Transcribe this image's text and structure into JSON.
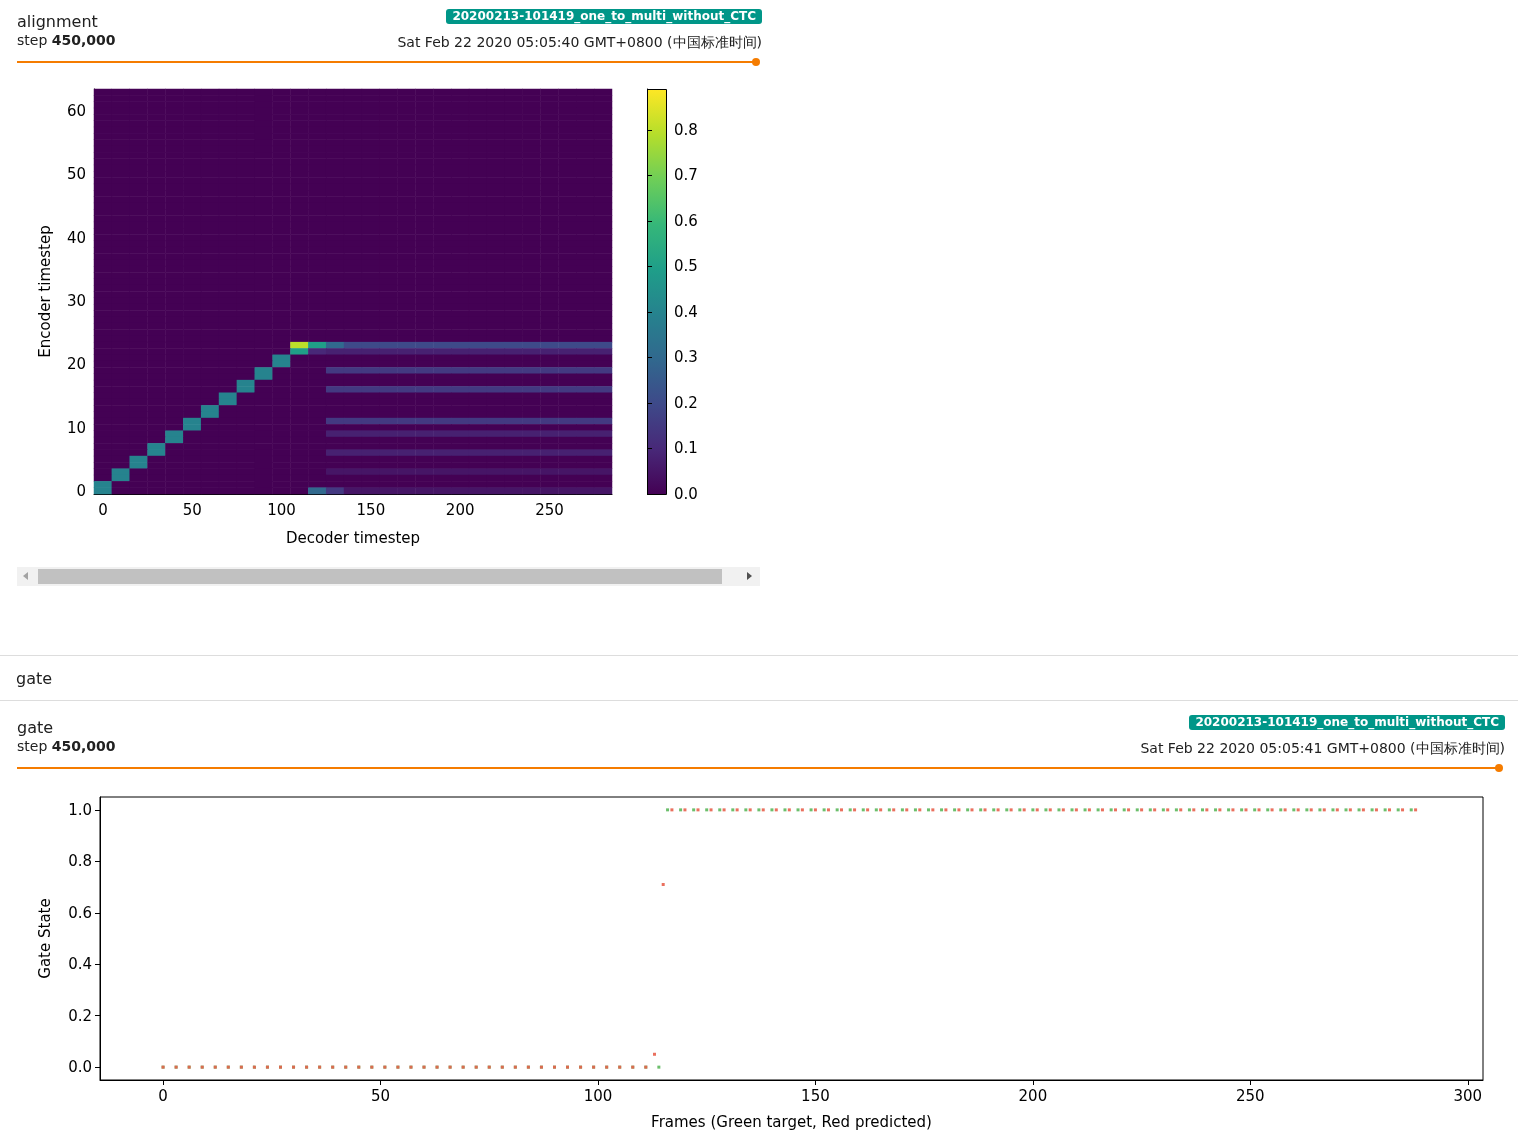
{
  "chart_data": [
    {
      "type": "heatmap",
      "title": "alignment",
      "subtitle": "step 450,000",
      "annotations": [
        "20200213-101419_one_to_multi_without_CTC",
        "Sat Feb 22 2020 05:05:40 GMT+0800 (中国标准时间)"
      ],
      "xlabel": "Decoder timestep",
      "ylabel": "Encoder timestep",
      "categories": [
        "0",
        null,
        null,
        null,
        null,
        "50",
        null,
        null,
        null,
        null,
        "100",
        null,
        null,
        null,
        null,
        "150",
        null,
        null,
        null,
        null,
        "200",
        null,
        null,
        null,
        null,
        "250",
        null,
        null,
        null
      ],
      "y_categories": [
        null,
        null,
        null,
        "60",
        null,
        null,
        null,
        null,
        null,
        null,
        null,
        null,
        null,
        "50",
        null,
        null,
        null,
        null,
        null,
        null,
        null,
        null,
        null,
        "40",
        null,
        null,
        null,
        null,
        null,
        null,
        null,
        null,
        null,
        "30",
        null,
        null,
        null,
        null,
        null,
        null,
        null,
        null,
        null,
        "20",
        null,
        null,
        null,
        null,
        null,
        null,
        null,
        null,
        null,
        "10",
        null,
        null,
        null,
        null,
        null,
        null,
        null,
        null,
        null,
        "0"
      ],
      "cells": [
        [
          0,
          0,
          0,
          0,
          0,
          0,
          0,
          0,
          0,
          0,
          0,
          0,
          0,
          0,
          0,
          0,
          0,
          0,
          0,
          0,
          0,
          0,
          0,
          0,
          0,
          0,
          0,
          0,
          0
        ],
        [
          0,
          0,
          0,
          0,
          0,
          0,
          0,
          0,
          0,
          0,
          0,
          0,
          0,
          0,
          0,
          0,
          0,
          0,
          0,
          0,
          0,
          0,
          0,
          0,
          0,
          0,
          0,
          0,
          0
        ],
        [
          0,
          0,
          0,
          0,
          0,
          0,
          0,
          0,
          0,
          0,
          0,
          0,
          0,
          0,
          0,
          0,
          0,
          0,
          0,
          0,
          0,
          0,
          0,
          0,
          0,
          0,
          0,
          0,
          0
        ],
        [
          0,
          0,
          0,
          0,
          0,
          0,
          0,
          0,
          0,
          0,
          0,
          0,
          0,
          0,
          0,
          0,
          0,
          0,
          0,
          0,
          0,
          0,
          0,
          0,
          0,
          0,
          0,
          0,
          0
        ],
        [
          0,
          0,
          0,
          0,
          0,
          0,
          0,
          0,
          0,
          0,
          0,
          0,
          0,
          0,
          0,
          0,
          0,
          0,
          0,
          0,
          0,
          0,
          0,
          0,
          0,
          0,
          0,
          0,
          0
        ],
        [
          0,
          0,
          0,
          0,
          0,
          0,
          0,
          0,
          0,
          0,
          0,
          0,
          0,
          0,
          0,
          0,
          0,
          0,
          0,
          0,
          0,
          0,
          0,
          0,
          0,
          0,
          0,
          0,
          0
        ],
        [
          0,
          0,
          0,
          0,
          0,
          0,
          0,
          0,
          0,
          0,
          0,
          0,
          0,
          0,
          0,
          0,
          0,
          0,
          0,
          0,
          0,
          0,
          0,
          0,
          0,
          0,
          0,
          0,
          0
        ],
        [
          0,
          0,
          0,
          0,
          0,
          0,
          0,
          0,
          0,
          0,
          0,
          0,
          0,
          0,
          0,
          0,
          0,
          0,
          0,
          0,
          0,
          0,
          0,
          0,
          0,
          0,
          0,
          0,
          0
        ],
        [
          0,
          0,
          0,
          0,
          0,
          0,
          0,
          0,
          0,
          0,
          0,
          0,
          0,
          0,
          0,
          0,
          0,
          0,
          0,
          0,
          0,
          0,
          0,
          0,
          0,
          0,
          0,
          0,
          0
        ],
        [
          0,
          0,
          0,
          0,
          0,
          0,
          0,
          0,
          0,
          0,
          0,
          0,
          0,
          0,
          0,
          0,
          0,
          0,
          0,
          0,
          0,
          0,
          0,
          0,
          0,
          0,
          0,
          0,
          0
        ],
        [
          0,
          0,
          0,
          0,
          0,
          0,
          0,
          0,
          0,
          0,
          0,
          0,
          0,
          0,
          0,
          0,
          0,
          0,
          0,
          0,
          0,
          0,
          0,
          0,
          0,
          0,
          0,
          0,
          0
        ],
        [
          0,
          0,
          0,
          0,
          0,
          0,
          0,
          0,
          0,
          0,
          0,
          0,
          0,
          0,
          0,
          0,
          0,
          0,
          0,
          0,
          0,
          0,
          0,
          0,
          0,
          0,
          0,
          0,
          0
        ],
        [
          0,
          0,
          0,
          0,
          0,
          0,
          0,
          0,
          0,
          0,
          0,
          0,
          0,
          0,
          0,
          0,
          0,
          0,
          0,
          0,
          0,
          0,
          0,
          0,
          0,
          0,
          0,
          0,
          0
        ],
        [
          0,
          0,
          0,
          0,
          0,
          0,
          0,
          0,
          0,
          0,
          0,
          0,
          0,
          0,
          0,
          0,
          0,
          0,
          0,
          0,
          0,
          0,
          0,
          0,
          0,
          0,
          0,
          0,
          0
        ],
        [
          0,
          0,
          0,
          0,
          0,
          0,
          0,
          0,
          0,
          0,
          0,
          0,
          0,
          0,
          0,
          0,
          0,
          0,
          0,
          0,
          0,
          0,
          0,
          0,
          0,
          0,
          0,
          0,
          0
        ],
        [
          0,
          0,
          0,
          0,
          0,
          0,
          0,
          0,
          0,
          0,
          0,
          0,
          0,
          0,
          0,
          0,
          0,
          0,
          0,
          0,
          0,
          0,
          0,
          0,
          0,
          0,
          0,
          0,
          0
        ],
        [
          0,
          0,
          0,
          0,
          0,
          0,
          0,
          0,
          0,
          0,
          0,
          0,
          0,
          0,
          0,
          0,
          0,
          0,
          0,
          0,
          0,
          0,
          0,
          0,
          0,
          0,
          0,
          0,
          0
        ],
        [
          0,
          0,
          0,
          0,
          0,
          0,
          0,
          0,
          0,
          0,
          0,
          0,
          0,
          0,
          0,
          0,
          0,
          0,
          0,
          0,
          0,
          0,
          0,
          0,
          0,
          0,
          0,
          0,
          0
        ],
        [
          0,
          0,
          0,
          0,
          0,
          0,
          0,
          0,
          0,
          0,
          0,
          0,
          0,
          0,
          0,
          0,
          0,
          0,
          0,
          0,
          0,
          0,
          0,
          0,
          0,
          0,
          0,
          0,
          0
        ],
        [
          0,
          0,
          0,
          0,
          0,
          0,
          0,
          0,
          0,
          0,
          0,
          0,
          0,
          0,
          0,
          0,
          0,
          0,
          0,
          0,
          0,
          0,
          0,
          0,
          0,
          0,
          0,
          0,
          0
        ],
        [
          0,
          0,
          0,
          0,
          0,
          0,
          0,
          0,
          0,
          0,
          0,
          0,
          0,
          0,
          0,
          0,
          0,
          0,
          0,
          0,
          0,
          0,
          0,
          0,
          0,
          0,
          0,
          0,
          0
        ],
        [
          0,
          0,
          0,
          0,
          0,
          0,
          0,
          0,
          0,
          0,
          0,
          0,
          0,
          0,
          0,
          0,
          0,
          0,
          0,
          0,
          0,
          0,
          0,
          0,
          0,
          0,
          0,
          0,
          0
        ],
        [
          0,
          0,
          0,
          0,
          0,
          0,
          0,
          0,
          0,
          0,
          0,
          0,
          0,
          0,
          0,
          0,
          0,
          0,
          0,
          0,
          0,
          0,
          0,
          0,
          0,
          0,
          0,
          0,
          0
        ],
        [
          0,
          0,
          0,
          0,
          0,
          0,
          0,
          0,
          0,
          0,
          0,
          0,
          0,
          0,
          0,
          0,
          0,
          0,
          0,
          0,
          0,
          0,
          0,
          0,
          0,
          0,
          0,
          0,
          0
        ],
        [
          0,
          0,
          0,
          0,
          0,
          0,
          0,
          0,
          0,
          0,
          0,
          0,
          0,
          0,
          0,
          0,
          0,
          0,
          0,
          0,
          0,
          0,
          0,
          0,
          0,
          0,
          0,
          0,
          0
        ],
        [
          0,
          0,
          0,
          0,
          0,
          0,
          0,
          0,
          0,
          0,
          0,
          0,
          0,
          0,
          0,
          0,
          0,
          0,
          0,
          0,
          0,
          0,
          0,
          0,
          0,
          0,
          0,
          0,
          0
        ],
        [
          0,
          0,
          0,
          0,
          0,
          0,
          0,
          0,
          0,
          0,
          0,
          0,
          0,
          0,
          0,
          0,
          0,
          0,
          0,
          0,
          0,
          0,
          0,
          0,
          0,
          0,
          0,
          0,
          0
        ],
        [
          0,
          0,
          0,
          0,
          0,
          0,
          0,
          0,
          0,
          0,
          0,
          0,
          0,
          0,
          0,
          0,
          0,
          0,
          0,
          0,
          0,
          0,
          0,
          0,
          0,
          0,
          0,
          0,
          0
        ],
        [
          0,
          0,
          0,
          0,
          0,
          0,
          0,
          0,
          0,
          0,
          0,
          0,
          0,
          0,
          0,
          0,
          0,
          0,
          0,
          0,
          0,
          0,
          0,
          0,
          0,
          0,
          0,
          0,
          0
        ],
        [
          0,
          0,
          0,
          0,
          0,
          0,
          0,
          0,
          0,
          0,
          0,
          0,
          0,
          0,
          0,
          0,
          0,
          0,
          0,
          0,
          0,
          0,
          0,
          0,
          0,
          0,
          0,
          0,
          0
        ],
        [
          0,
          0,
          0,
          0,
          0,
          0,
          0,
          0,
          0,
          0,
          0,
          0,
          0,
          0,
          0,
          0,
          0,
          0,
          0,
          0,
          0,
          0,
          0,
          0,
          0,
          0,
          0,
          0,
          0
        ],
        [
          0,
          0,
          0,
          0,
          0,
          0,
          0,
          0,
          0,
          0,
          0,
          0,
          0,
          0,
          0,
          0,
          0,
          0,
          0,
          0,
          0,
          0,
          0,
          0,
          0,
          0,
          0,
          0,
          0
        ],
        [
          0,
          0,
          0,
          0,
          0,
          0,
          0,
          0,
          0,
          0,
          0,
          0,
          0,
          0,
          0,
          0,
          0,
          0,
          0,
          0,
          0,
          0,
          0,
          0,
          0,
          0,
          0,
          0,
          0
        ],
        [
          0,
          0,
          0,
          0,
          0,
          0,
          0,
          0,
          0,
          0,
          0,
          0,
          0,
          0,
          0,
          0,
          0,
          0,
          0,
          0,
          0,
          0,
          0,
          0,
          0,
          0,
          0,
          0,
          0
        ],
        [
          0,
          0,
          0,
          0,
          0,
          0,
          0,
          0,
          0,
          0,
          0,
          0,
          0,
          0,
          0,
          0,
          0,
          0,
          0,
          0,
          0,
          0,
          0,
          0,
          0,
          0,
          0,
          0,
          0
        ],
        [
          0,
          0,
          0,
          0,
          0,
          0,
          0,
          0,
          0,
          0,
          0,
          0,
          0,
          0,
          0,
          0,
          0,
          0,
          0,
          0,
          0,
          0,
          0,
          0,
          0,
          0,
          0,
          0,
          0
        ],
        [
          0,
          0,
          0,
          0,
          0,
          0,
          0,
          0,
          0,
          0,
          0,
          0,
          0,
          0,
          0,
          0,
          0,
          0,
          0,
          0,
          0,
          0,
          0,
          0,
          0,
          0,
          0,
          0,
          0
        ],
        [
          0,
          0,
          0,
          0,
          0,
          0,
          0,
          0,
          0,
          0,
          0,
          0,
          0,
          0,
          0,
          0,
          0,
          0,
          0,
          0,
          0,
          0,
          0,
          0,
          0,
          0,
          0,
          0,
          0
        ],
        [
          0,
          0,
          0,
          0,
          0,
          0,
          0,
          0,
          0,
          0,
          0,
          0,
          0,
          0,
          0,
          0,
          0,
          0,
          0,
          0,
          0,
          0,
          0,
          0,
          0,
          0,
          0,
          0,
          0
        ],
        [
          0,
          0,
          0,
          0,
          0,
          0,
          0,
          0,
          0,
          0,
          0,
          0,
          0,
          0,
          0,
          0,
          0,
          0,
          0,
          0,
          0,
          0,
          0,
          0,
          0,
          0,
          0,
          0,
          0
        ],
        [
          0,
          0,
          0,
          0,
          0,
          0,
          0,
          0,
          0,
          0,
          0,
          0.8,
          0.5,
          0.3,
          0.2,
          0.2,
          0.2,
          0.2,
          0.2,
          0.2,
          0.2,
          0.2,
          0.2,
          0.2,
          0.2,
          0.2,
          0.2,
          0.2,
          0.2
        ],
        [
          0,
          0,
          0,
          0,
          0,
          0,
          0,
          0,
          0,
          0,
          0,
          0.5,
          0.1,
          0.08,
          0.08,
          0.08,
          0.08,
          0.08,
          0.08,
          0.08,
          0.08,
          0.08,
          0.08,
          0.08,
          0.08,
          0.08,
          0.08,
          0.08,
          0.08
        ],
        [
          0,
          0,
          0,
          0,
          0,
          0,
          0,
          0,
          0,
          0,
          0.4,
          0,
          0,
          0,
          0,
          0,
          0,
          0,
          0,
          0,
          0,
          0,
          0,
          0,
          0,
          0,
          0,
          0,
          0
        ],
        [
          0,
          0,
          0,
          0,
          0,
          0,
          0,
          0,
          0,
          0,
          0.4,
          0,
          0,
          0,
          0,
          0,
          0,
          0,
          0,
          0,
          0,
          0,
          0,
          0,
          0,
          0,
          0,
          0,
          0
        ],
        [
          0,
          0,
          0,
          0,
          0,
          0,
          0,
          0,
          0,
          0.4,
          0,
          0,
          0,
          0.15,
          0.15,
          0.15,
          0.15,
          0.15,
          0.15,
          0.15,
          0.15,
          0.15,
          0.15,
          0.15,
          0.15,
          0.15,
          0.15,
          0.15,
          0.15
        ],
        [
          0,
          0,
          0,
          0,
          0,
          0,
          0,
          0,
          0,
          0.4,
          0,
          0,
          0,
          0,
          0,
          0,
          0,
          0,
          0,
          0,
          0,
          0,
          0,
          0,
          0,
          0,
          0,
          0,
          0
        ],
        [
          0,
          0,
          0,
          0,
          0,
          0,
          0,
          0,
          0.4,
          0,
          0,
          0,
          0,
          0,
          0,
          0,
          0,
          0,
          0,
          0,
          0,
          0,
          0,
          0,
          0,
          0,
          0,
          0,
          0
        ],
        [
          0,
          0,
          0,
          0,
          0,
          0,
          0,
          0,
          0.4,
          0,
          0,
          0,
          0,
          0.15,
          0.15,
          0.15,
          0.15,
          0.15,
          0.15,
          0.15,
          0.15,
          0.15,
          0.15,
          0.15,
          0.15,
          0.15,
          0.15,
          0.15,
          0.15
        ],
        [
          0,
          0,
          0,
          0,
          0,
          0,
          0,
          0.4,
          0,
          0,
          0,
          0,
          0,
          0,
          0,
          0,
          0,
          0,
          0,
          0,
          0,
          0,
          0,
          0,
          0,
          0,
          0,
          0,
          0
        ],
        [
          0,
          0,
          0,
          0,
          0,
          0,
          0,
          0.4,
          0,
          0,
          0,
          0,
          0,
          0,
          0,
          0,
          0,
          0,
          0,
          0,
          0,
          0,
          0,
          0,
          0,
          0,
          0,
          0,
          0
        ],
        [
          0,
          0,
          0,
          0,
          0,
          0,
          0.4,
          0,
          0,
          0,
          0,
          0,
          0,
          0,
          0,
          0,
          0,
          0,
          0,
          0,
          0,
          0,
          0,
          0,
          0,
          0,
          0,
          0,
          0
        ],
        [
          0,
          0,
          0,
          0,
          0,
          0,
          0.4,
          0,
          0,
          0,
          0,
          0,
          0,
          0,
          0,
          0,
          0,
          0,
          0,
          0,
          0,
          0,
          0,
          0,
          0,
          0,
          0,
          0,
          0
        ],
        [
          0,
          0,
          0,
          0,
          0,
          0.4,
          0,
          0,
          0,
          0,
          0,
          0,
          0,
          0.15,
          0.15,
          0.15,
          0.15,
          0.15,
          0.15,
          0.15,
          0.15,
          0.15,
          0.15,
          0.15,
          0.15,
          0.15,
          0.15,
          0.15,
          0.15
        ],
        [
          0,
          0,
          0,
          0,
          0,
          0.4,
          0,
          0,
          0,
          0,
          0,
          0,
          0,
          0,
          0,
          0,
          0,
          0,
          0,
          0,
          0,
          0,
          0,
          0,
          0,
          0,
          0,
          0,
          0
        ],
        [
          0,
          0,
          0,
          0,
          0.4,
          0,
          0,
          0,
          0,
          0,
          0,
          0,
          0,
          0.08,
          0.08,
          0.08,
          0.08,
          0.08,
          0.08,
          0.08,
          0.08,
          0.08,
          0.08,
          0.08,
          0.08,
          0.08,
          0.08,
          0.08,
          0.08
        ],
        [
          0,
          0,
          0,
          0,
          0.4,
          0,
          0,
          0,
          0,
          0,
          0,
          0,
          0,
          0,
          0,
          0,
          0,
          0,
          0,
          0,
          0,
          0,
          0,
          0,
          0,
          0,
          0,
          0,
          0
        ],
        [
          0,
          0,
          0,
          0.4,
          0,
          0,
          0,
          0,
          0,
          0,
          0,
          0,
          0,
          0,
          0,
          0,
          0,
          0,
          0,
          0,
          0,
          0,
          0,
          0,
          0,
          0,
          0,
          0,
          0
        ],
        [
          0,
          0,
          0,
          0.4,
          0,
          0,
          0,
          0,
          0,
          0,
          0,
          0,
          0,
          0.08,
          0.08,
          0.08,
          0.08,
          0.08,
          0.08,
          0.08,
          0.08,
          0.08,
          0.08,
          0.08,
          0.08,
          0.08,
          0.08,
          0.08,
          0.08
        ],
        [
          0,
          0,
          0.4,
          0,
          0,
          0,
          0,
          0,
          0,
          0,
          0,
          0,
          0,
          0,
          0,
          0,
          0,
          0,
          0,
          0,
          0,
          0,
          0,
          0,
          0,
          0,
          0,
          0,
          0
        ],
        [
          0,
          0,
          0.4,
          0,
          0,
          0,
          0,
          0,
          0,
          0,
          0,
          0,
          0,
          0,
          0,
          0,
          0,
          0,
          0,
          0,
          0,
          0,
          0,
          0,
          0,
          0,
          0,
          0,
          0
        ],
        [
          0,
          0.4,
          0,
          0,
          0,
          0,
          0,
          0,
          0,
          0,
          0,
          0,
          0,
          0.05,
          0.05,
          0.05,
          0.05,
          0.05,
          0.05,
          0.05,
          0.05,
          0.05,
          0.05,
          0.05,
          0.05,
          0.05,
          0.05,
          0.05,
          0.05
        ],
        [
          0,
          0.4,
          0,
          0,
          0,
          0,
          0,
          0,
          0,
          0,
          0,
          0,
          0,
          0,
          0,
          0,
          0,
          0,
          0,
          0,
          0,
          0,
          0,
          0,
          0,
          0,
          0,
          0,
          0
        ],
        [
          0.4,
          0,
          0,
          0,
          0,
          0,
          0,
          0,
          0,
          0,
          0,
          0,
          0,
          0,
          0,
          0,
          0,
          0,
          0,
          0,
          0,
          0,
          0,
          0,
          0,
          0,
          0,
          0,
          0
        ],
        [
          0.4,
          0,
          0,
          0,
          0,
          0,
          0,
          0,
          0,
          0,
          0,
          0,
          0.3,
          0.15,
          0.05,
          0.05,
          0.05,
          0.05,
          0.05,
          0.05,
          0.05,
          0.05,
          0.05,
          0.05,
          0.05,
          0.05,
          0.05,
          0.05,
          0.05
        ]
      ],
      "clim": [
        0,
        0.89
      ],
      "cticks": [
        {
          "value": 0,
          "label": "0.0"
        },
        0.1,
        0.2,
        0.3,
        0.4,
        0.5,
        0.6,
        0.7,
        0.8
      ]
    },
    {
      "type": "scatter",
      "title": "gate",
      "subtitle": "step 450,000",
      "annotations": [
        "20200213-101419_one_to_multi_without_CTC",
        "Sat Feb 22 2020 05:05:41 GMT+0800 (中国标准时间)",
        "gate"
      ],
      "xlabel": "Frames (Green target, Red predicted)",
      "ylabel": "Gate State",
      "xlim": [
        -14.5,
        303.5
      ],
      "xticks": [
        0,
        50,
        100,
        150,
        200,
        250,
        300
      ],
      "ylim": [
        -0.05,
        1.05
      ],
      "yticks": [
        {
          "value": 0,
          "label": "0.0"
        },
        0.2,
        0.4,
        0.6,
        0.8,
        {
          "value": 1,
          "label": "1.0"
        }
      ],
      "marker": "square",
      "series": [
        {
          "color": "#5cb85c",
          "x": [
            0,
            3,
            6,
            9,
            12,
            15,
            18,
            21,
            24,
            27,
            30,
            33,
            36,
            39,
            42,
            45,
            48,
            51,
            54,
            57,
            60,
            63,
            66,
            69,
            72,
            75,
            78,
            81,
            84,
            87,
            90,
            93,
            96,
            99,
            102,
            105,
            108,
            111,
            114,
            116,
            119,
            122,
            125,
            128,
            131,
            134,
            137,
            140,
            143,
            146,
            149,
            152,
            155,
            158,
            161,
            164,
            167,
            170,
            173,
            176,
            179,
            182,
            185,
            188,
            191,
            194,
            197,
            200,
            203,
            206,
            209,
            212,
            215,
            218,
            221,
            224,
            227,
            230,
            233,
            236,
            239,
            242,
            245,
            248,
            251,
            254,
            257,
            260,
            263,
            266,
            269,
            272,
            275,
            278,
            281,
            284,
            287
          ],
          "values": [
            0,
            0,
            0,
            0,
            0,
            0,
            0,
            0,
            0,
            0,
            0,
            0,
            0,
            0,
            0,
            0,
            0,
            0,
            0,
            0,
            0,
            0,
            0,
            0,
            0,
            0,
            0,
            0,
            0,
            0,
            0,
            0,
            0,
            0,
            0,
            0,
            0,
            0,
            0,
            1,
            1,
            1,
            1,
            1,
            1,
            1,
            1,
            1,
            1,
            1,
            1,
            1,
            1,
            1,
            1,
            1,
            1,
            1,
            1,
            1,
            1,
            1,
            1,
            1,
            1,
            1,
            1,
            1,
            1,
            1,
            1,
            1,
            1,
            1,
            1,
            1,
            1,
            1,
            1,
            1,
            1,
            1,
            1,
            1,
            1,
            1,
            1,
            1,
            1,
            1,
            1,
            1,
            1,
            1,
            1,
            1,
            1
          ]
        },
        {
          "color": "#e8604c",
          "x": [
            0,
            3,
            6,
            9,
            12,
            15,
            18,
            21,
            24,
            27,
            30,
            33,
            36,
            39,
            42,
            45,
            48,
            51,
            54,
            57,
            60,
            63,
            66,
            69,
            72,
            75,
            78,
            81,
            84,
            87,
            90,
            93,
            96,
            99,
            102,
            105,
            108,
            111,
            113,
            115,
            117,
            120,
            123,
            126,
            129,
            132,
            135,
            138,
            141,
            144,
            147,
            150,
            153,
            156,
            159,
            162,
            165,
            168,
            171,
            174,
            177,
            180,
            183,
            186,
            189,
            192,
            195,
            198,
            201,
            204,
            207,
            210,
            213,
            216,
            219,
            222,
            225,
            228,
            231,
            234,
            237,
            240,
            243,
            246,
            249,
            252,
            255,
            258,
            261,
            264,
            267,
            270,
            273,
            276,
            279,
            282,
            285,
            288
          ],
          "values": [
            0,
            0,
            0,
            0,
            0,
            0,
            0,
            0,
            0,
            0,
            0,
            0,
            0,
            0,
            0,
            0,
            0,
            0,
            0,
            0,
            0,
            0,
            0,
            0,
            0,
            0,
            0,
            0,
            0,
            0,
            0,
            0,
            0,
            0,
            0,
            0,
            0,
            0,
            0.05,
            0.71,
            1,
            1,
            1,
            1,
            1,
            1,
            1,
            1,
            1,
            1,
            1,
            1,
            1,
            1,
            1,
            1,
            1,
            1,
            1,
            1,
            1,
            1,
            1,
            1,
            1,
            1,
            1,
            1,
            1,
            1,
            1,
            1,
            1,
            1,
            1,
            1,
            1,
            1,
            1,
            1,
            1,
            1,
            1,
            1,
            1,
            1,
            1,
            1,
            1,
            1,
            1,
            1,
            1,
            1,
            1,
            1,
            1,
            1
          ]
        }
      ]
    }
  ]
}
